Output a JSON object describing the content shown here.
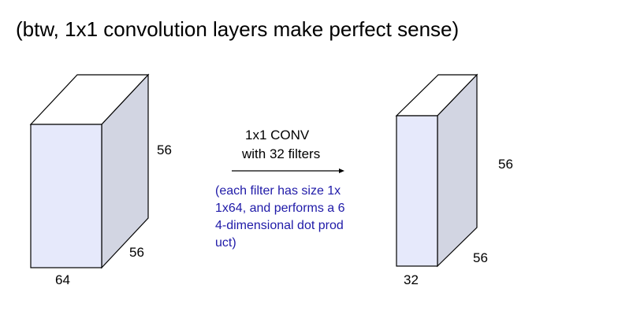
{
  "title": "(btw, 1x1 convolution layers make perfect sense)",
  "input_volume": {
    "height_label": "56",
    "width_label": "56",
    "depth_label": "64"
  },
  "operation": {
    "line1": "1x1 CONV",
    "line2": "with 32 filters"
  },
  "note": {
    "lines": [
      "(each filter has size  1x",
      "1x64,  and performs a  6",
      "4-dimensional dot  prod",
      "uct)"
    ],
    "color": "#1f1aa8"
  },
  "output_volume": {
    "height_label": "56",
    "width_label": "56",
    "depth_label": "32"
  },
  "colors": {
    "face_front": "#e6e9fb",
    "face_side": "#d2d5e2",
    "face_top": "#ffffff",
    "stroke": "#000000"
  }
}
